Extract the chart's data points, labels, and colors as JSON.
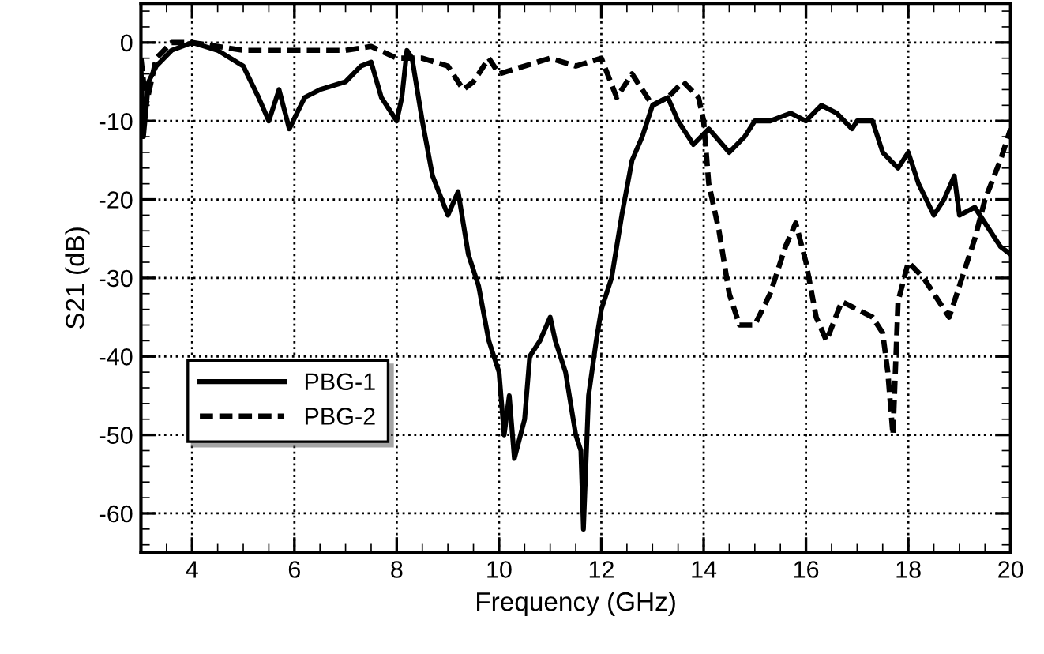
{
  "chart_data": {
    "type": "line",
    "xlabel": "Frequency (GHz)",
    "ylabel": "S21 (dB)",
    "xlim": [
      3,
      20
    ],
    "ylim": [
      -65,
      5
    ],
    "xticks": [
      4,
      6,
      8,
      10,
      12,
      14,
      16,
      18,
      20
    ],
    "yticks": [
      0,
      -10,
      -20,
      -30,
      -40,
      -50,
      -60
    ],
    "grid": true,
    "legend": "bottom left",
    "marker": "none",
    "series": [
      {
        "name": "PBG-1",
        "color": "#000000",
        "line_style": "solid",
        "x": [
          3.0,
          3.05,
          3.15,
          3.3,
          3.6,
          4.0,
          4.5,
          5.0,
          5.3,
          5.5,
          5.7,
          5.9,
          6.2,
          6.5,
          7.0,
          7.3,
          7.5,
          7.7,
          7.9,
          8.0,
          8.1,
          8.2,
          8.3,
          8.5,
          8.7,
          9.0,
          9.2,
          9.4,
          9.6,
          9.8,
          10.0,
          10.1,
          10.2,
          10.3,
          10.5,
          10.6,
          10.8,
          11.0,
          11.1,
          11.3,
          11.5,
          11.6,
          11.65,
          11.75,
          11.9,
          12.0,
          12.2,
          12.4,
          12.6,
          12.8,
          13.0,
          13.3,
          13.5,
          13.8,
          14.1,
          14.5,
          14.8,
          15.0,
          15.3,
          15.7,
          16.0,
          16.3,
          16.6,
          16.9,
          17.0,
          17.3,
          17.5,
          17.8,
          18.0,
          18.2,
          18.5,
          18.7,
          18.9,
          19.0,
          19.3,
          19.6,
          19.8,
          20.0
        ],
        "values": [
          -3,
          -12,
          -5,
          -3,
          -1,
          0,
          -1,
          -3,
          -7,
          -10,
          -6,
          -11,
          -7,
          -6,
          -5,
          -3,
          -2.5,
          -7,
          -9,
          -10,
          -7,
          -1,
          -2,
          -10,
          -17,
          -22,
          -19,
          -27,
          -31,
          -38,
          -42,
          -50,
          -45,
          -53,
          -48,
          -40,
          -38,
          -35,
          -38,
          -42,
          -50,
          -52,
          -62,
          -45,
          -38,
          -34,
          -30,
          -22,
          -15,
          -12,
          -8,
          -7,
          -10,
          -13,
          -11,
          -14,
          -12,
          -10,
          -10,
          -9,
          -10,
          -8,
          -9,
          -11,
          -10,
          -10,
          -14,
          -16,
          -14,
          -18,
          -22,
          -20,
          -17,
          -22,
          -21,
          -24,
          -26,
          -27
        ]
      },
      {
        "name": "PBG-2",
        "color": "#000000",
        "line_style": "dashed",
        "x": [
          3.0,
          3.1,
          3.3,
          3.6,
          4.0,
          5.0,
          6.0,
          7.0,
          7.5,
          8.0,
          8.5,
          9.0,
          9.3,
          9.5,
          9.8,
          10.0,
          10.5,
          11.0,
          11.5,
          12.0,
          12.3,
          12.6,
          13.0,
          13.3,
          13.6,
          13.9,
          14.0,
          14.1,
          14.3,
          14.5,
          14.7,
          15.0,
          15.3,
          15.6,
          15.8,
          16.0,
          16.2,
          16.4,
          16.7,
          17.0,
          17.3,
          17.5,
          17.6,
          17.7,
          17.8,
          18.0,
          18.3,
          18.6,
          18.8,
          19.0,
          19.3,
          19.5,
          19.8,
          20.0
        ],
        "values": [
          -2,
          -8,
          -2,
          0,
          0,
          -1,
          -1,
          -1,
          -0.5,
          -2,
          -2,
          -3,
          -6,
          -5,
          -2,
          -4,
          -3,
          -2,
          -3,
          -2,
          -7,
          -4,
          -8,
          -7,
          -5,
          -7,
          -10,
          -18,
          -24,
          -32,
          -36,
          -36,
          -32,
          -26,
          -23,
          -28,
          -35,
          -38,
          -33,
          -34,
          -35,
          -37,
          -42,
          -50,
          -33,
          -28,
          -30,
          -33,
          -35,
          -31,
          -25,
          -20,
          -15,
          -11
        ]
      }
    ]
  }
}
